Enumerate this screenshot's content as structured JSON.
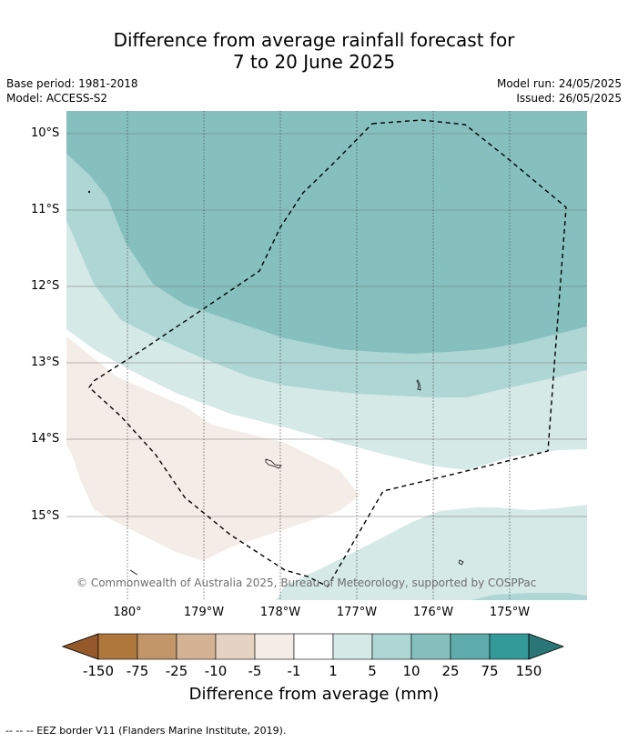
{
  "title_line1": "Difference from average rainfall forecast for",
  "title_line2": "7 to 20 June 2025",
  "base_period": "Base period: 1981-2018",
  "model": "Model: ACCESS-S2",
  "model_run": "Model run: 24/05/2025",
  "issued": "Issued: 26/05/2025",
  "lat_labels": [
    "10°S",
    "11°S",
    "12°S",
    "13°S",
    "14°S",
    "15°S"
  ],
  "lon_labels": [
    "180°",
    "179°W",
    "178°W",
    "177°W",
    "176°W",
    "175°W"
  ],
  "copyright": "© Commonwealth of Australia 2025, Bureau of Meteorology, supported by COSPPac",
  "colorbar": {
    "ticks": [
      "-150",
      "-75",
      "-25",
      "-10",
      "-5",
      "-1",
      "1",
      "5",
      "10",
      "25",
      "75",
      "150"
    ],
    "colors": {
      "below_min": "#94582a",
      "c1": "#b0773d",
      "c2": "#c29669",
      "c3": "#d4b394",
      "c4": "#e5d2c2",
      "c5": "#f4ede7",
      "c6": "#ffffff",
      "c7": "#d5e9e7",
      "c8": "#aed6d4",
      "c9": "#85c0bf",
      "c10": "#5dabab",
      "c11": "#339a99",
      "above_max": "#2a7676"
    },
    "label": "Difference from average (mm)"
  },
  "footer": "-- -- -- EEZ border V11 (Flanders Marine Institute, 2019)."
}
